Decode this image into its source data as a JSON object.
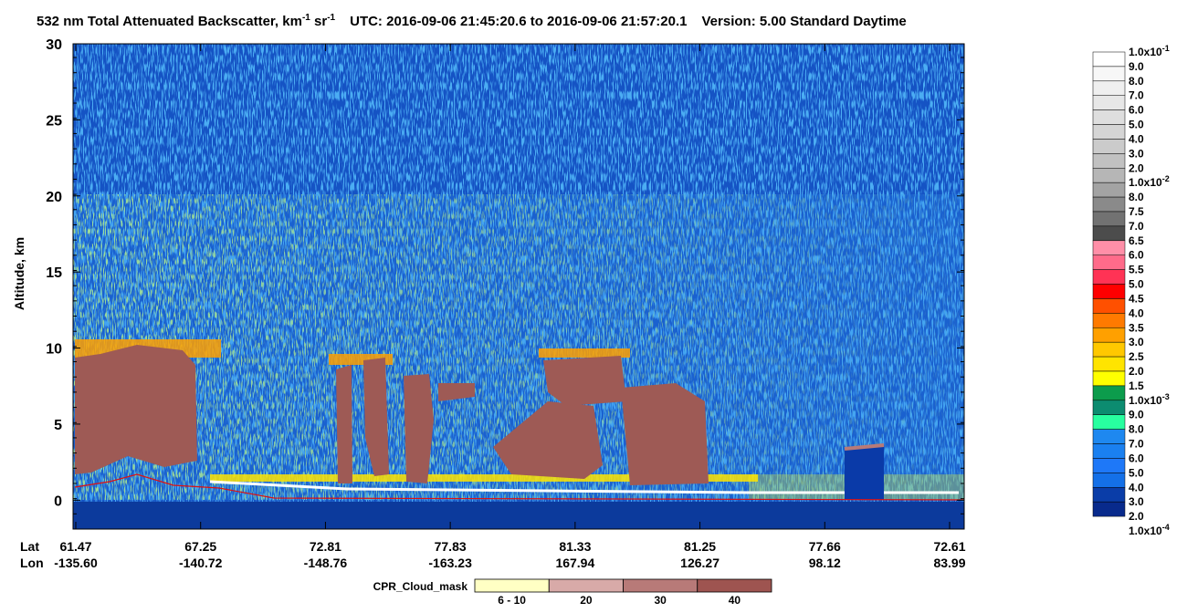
{
  "chart_data": {
    "type": "heatmap",
    "title": {
      "main": "532 nm Total Attenuated Backscatter, km",
      "exp1": "-1",
      "unit2": " sr",
      "exp2": "-1",
      "utc": "UTC:  2016-09-06 21:45:20.6  to  2016-09-06 21:57:20.1",
      "version": "Version: 5.00  Standard  Daytime"
    },
    "y_label": "Altitude, km",
    "ylim": [
      -1.9,
      30
    ],
    "yticks": [
      0,
      5,
      10,
      15,
      20,
      25,
      30
    ],
    "x_row_labels": [
      "Lat",
      "Lon"
    ],
    "lat": [
      "61.47",
      "67.25",
      "72.81",
      "77.83",
      "81.33",
      "81.25",
      "77.66",
      "72.61"
    ],
    "lon": [
      "-135.60",
      "-140.72",
      "-148.76",
      "-163.23",
      "167.94",
      "126.27",
      "98.12",
      "83.99"
    ],
    "colorbar": {
      "labels": [
        {
          "text": "1.0x10",
          "sup": "-1"
        },
        "9.0",
        "8.0",
        "7.0",
        "6.0",
        "5.0",
        "4.0",
        "3.0",
        "2.0",
        {
          "text": "1.0x10",
          "sup": "-2"
        },
        "8.0",
        "7.5",
        "7.0",
        "6.5",
        "6.0",
        "5.5",
        "5.0",
        "4.5",
        "4.0",
        "3.5",
        "3.0",
        "2.5",
        "2.0",
        "1.5",
        {
          "text": "1.0x10",
          "sup": "-3"
        },
        "9.0",
        "8.0",
        "7.0",
        "6.0",
        "5.0",
        "4.0",
        "3.0",
        "2.0",
        {
          "text": "1.0x10",
          "sup": "-4"
        }
      ],
      "colors": [
        "#ffffff",
        "#f7f7f7",
        "#efefef",
        "#e7e7e7",
        "#dedede",
        "#d5d5d5",
        "#cbcbcb",
        "#c1c1c1",
        "#b6b6b6",
        "#a3a3a3",
        "#8a8a8a",
        "#727272",
        "#4c4c4c",
        "#ff8fa8",
        "#ff6b8a",
        "#ff3355",
        "#ff0000",
        "#ff5000",
        "#ff7a00",
        "#ffa000",
        "#ffc800",
        "#ffe400",
        "#ffff00",
        "#0c9c4c",
        "#0c8c70",
        "#28ffa0",
        "#1e88f0",
        "#1a80f0",
        "#1e78f8",
        "#1470e8",
        "#0a3da8",
        "#082a8c"
      ]
    },
    "cloud_mask": {
      "title": "CPR_Cloud_mask",
      "labels": [
        "6 - 10",
        "20",
        "30",
        "40"
      ],
      "colors": [
        "#ffffc4",
        "#d8aaa8",
        "#b87a78",
        "#9e5450"
      ]
    }
  }
}
